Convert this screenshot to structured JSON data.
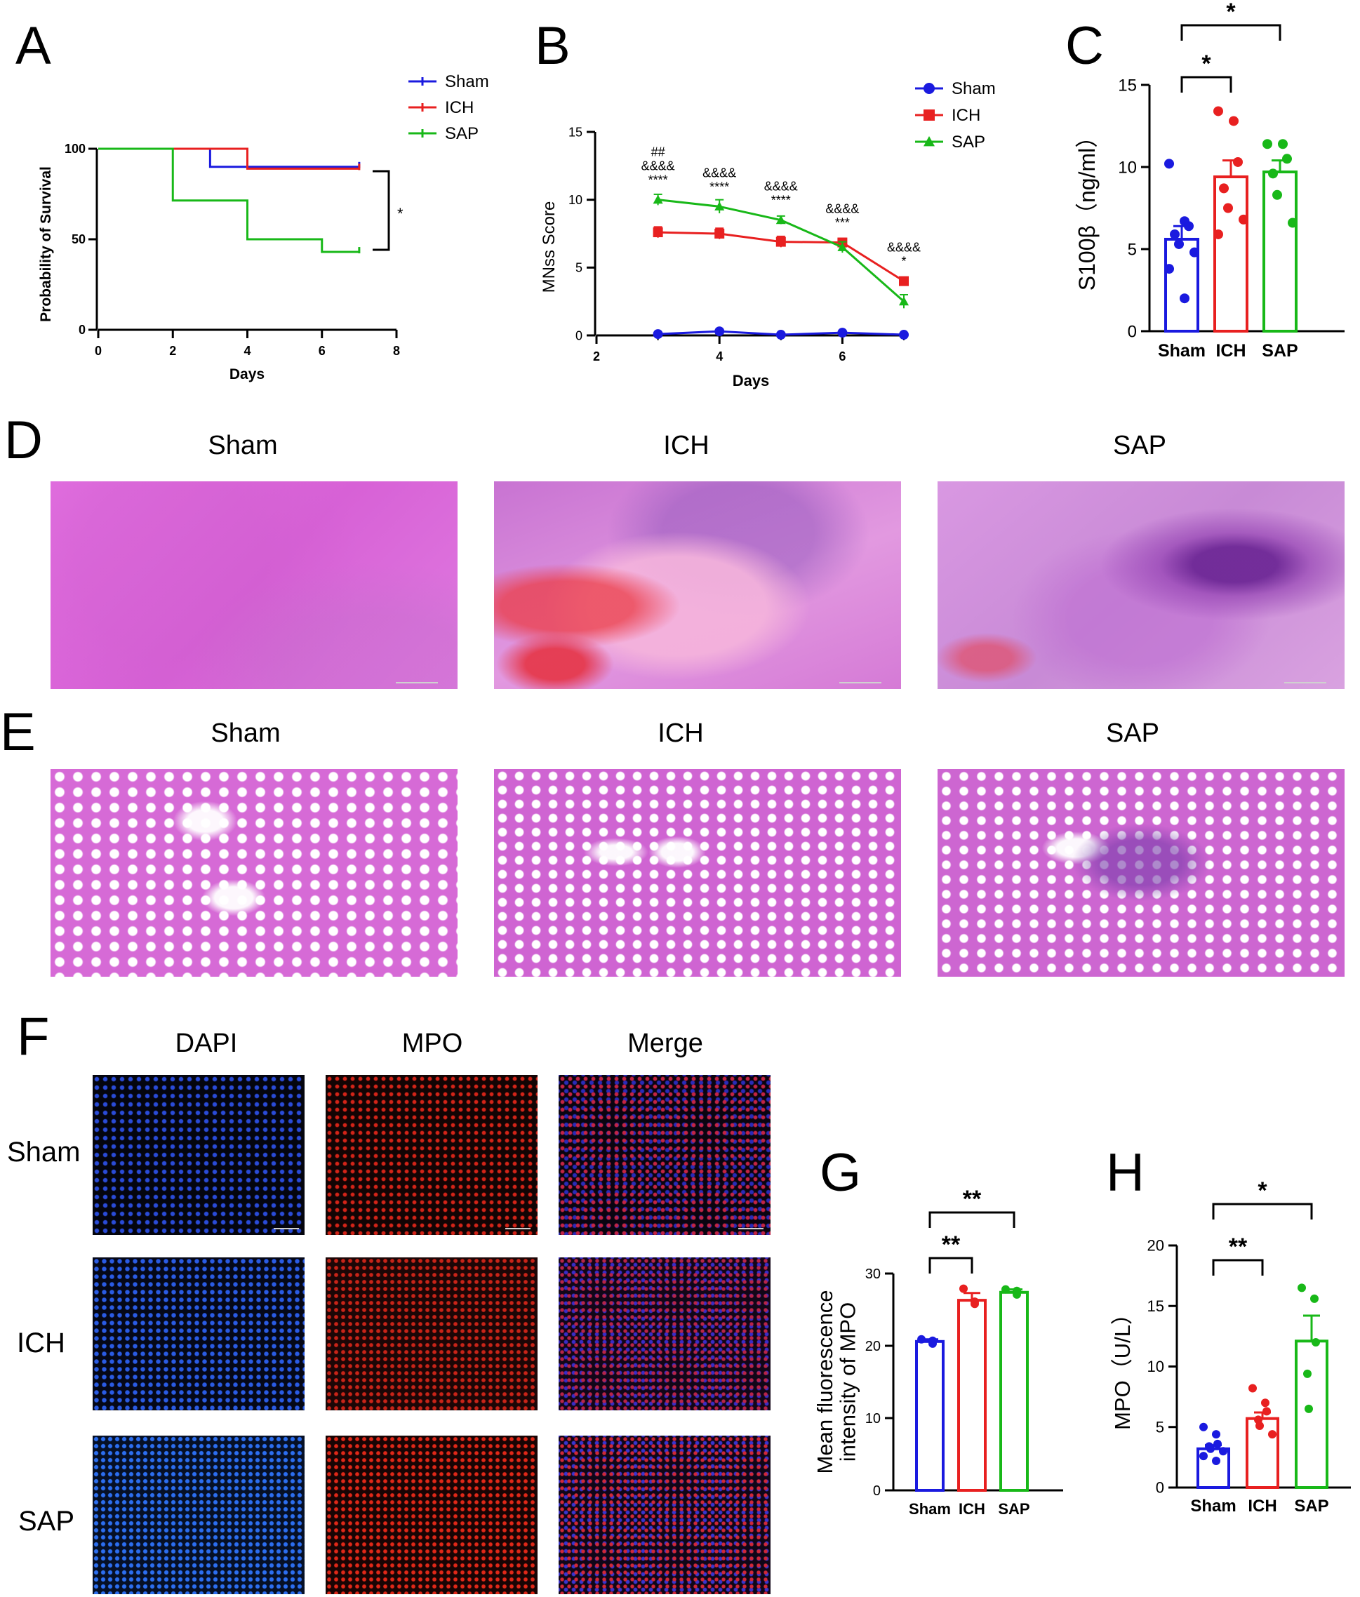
{
  "panels": {
    "A": {
      "letter": "A",
      "chart_data": {
        "type": "line",
        "subtype": "kaplan-meier-survival",
        "xlabel": "Days",
        "ylabel": "Probability of Survival",
        "xlim": [
          0,
          8
        ],
        "ylim": [
          0,
          100
        ],
        "xticks": [
          "0",
          "2",
          "4",
          "6",
          "8"
        ],
        "yticks": [
          "0",
          "50",
          "100"
        ],
        "legend_position": "top-right",
        "series": [
          {
            "name": "Sham",
            "color": "#1a1adf",
            "steps": [
              [
                0,
                100
              ],
              [
                3,
                100
              ],
              [
                3,
                90
              ],
              [
                7,
                90
              ]
            ]
          },
          {
            "name": "ICH",
            "color": "#e82020",
            "steps": [
              [
                0,
                100
              ],
              [
                4,
                100
              ],
              [
                4,
                89
              ],
              [
                7,
                89
              ]
            ]
          },
          {
            "name": "SAP",
            "color": "#18b818",
            "steps": [
              [
                0,
                100
              ],
              [
                2,
                100
              ],
              [
                2,
                71.4
              ],
              [
                4,
                71.4
              ],
              [
                4,
                50
              ],
              [
                6,
                50
              ],
              [
                6,
                43
              ],
              [
                7,
                43
              ]
            ]
          }
        ],
        "annotations": [
          {
            "text": "*",
            "between": [
              "ICH",
              "SAP"
            ]
          }
        ]
      }
    },
    "B": {
      "letter": "B",
      "chart_data": {
        "type": "line",
        "xlabel": "Days",
        "ylabel": "MNss Score",
        "xlim": [
          2,
          7
        ],
        "ylim": [
          0,
          15
        ],
        "xticks": [
          "2",
          "4",
          "6"
        ],
        "yticks": [
          "0",
          "5",
          "10",
          "15"
        ],
        "legend_position": "top-right",
        "x": [
          3,
          4,
          5,
          6,
          7
        ],
        "series": [
          {
            "name": "Sham",
            "color": "#1a1adf",
            "marker": "circle",
            "values": [
              0.1,
              0.3,
              0.05,
              0.2,
              0.05
            ],
            "err": [
              0.05,
              0.1,
              0.05,
              0.1,
              0.05
            ]
          },
          {
            "name": "ICH",
            "color": "#e82020",
            "marker": "square",
            "values": [
              7.6,
              7.5,
              6.9,
              6.85,
              4.0
            ],
            "err": [
              0.4,
              0.4,
              0.4,
              0.3,
              0.2
            ]
          },
          {
            "name": "SAP",
            "color": "#18b818",
            "marker": "triangle",
            "values": [
              10.0,
              9.5,
              8.5,
              6.5,
              2.5
            ],
            "err": [
              0.4,
              0.5,
              0.3,
              0.4,
              0.5
            ]
          }
        ],
        "annotations": [
          {
            "x": 3,
            "lines": [
              "##",
              "&&&&",
              "****"
            ]
          },
          {
            "x": 4,
            "lines": [
              "&&&&",
              "****"
            ]
          },
          {
            "x": 5,
            "lines": [
              "&&&&",
              "****"
            ]
          },
          {
            "x": 6,
            "lines": [
              "&&&&",
              "***"
            ]
          },
          {
            "x": 7,
            "lines": [
              "&&&&",
              "*"
            ]
          }
        ]
      }
    },
    "C": {
      "letter": "C",
      "chart_data": {
        "type": "bar",
        "ylabel": "S100β（ng/ml）",
        "ylim": [
          0,
          15
        ],
        "yticks": [
          "0",
          "5",
          "10",
          "15"
        ],
        "categories": [
          "Sham",
          "ICH",
          "SAP"
        ],
        "colors": [
          "#1a1adf",
          "#e82020",
          "#18b818"
        ],
        "values": [
          5.6,
          9.4,
          9.7
        ],
        "sem": [
          0.8,
          1.0,
          0.7
        ],
        "points": [
          [
            10.2,
            6.7,
            6.4,
            5.9,
            5.3,
            4.8,
            3.8,
            2.0
          ],
          [
            13.4,
            12.8,
            10.3,
            8.7,
            7.5,
            6.8,
            5.9
          ],
          [
            11.4,
            11.4,
            10.5,
            9.6,
            8.3,
            6.6
          ]
        ],
        "significance": [
          {
            "pair": [
              "Sham",
              "ICH"
            ],
            "label": "*"
          },
          {
            "pair": [
              "Sham",
              "SAP"
            ],
            "label": "*"
          }
        ]
      }
    },
    "D": {
      "letter": "D",
      "titles": [
        "Sham",
        "ICH",
        "SAP"
      ]
    },
    "E": {
      "letter": "E",
      "titles": [
        "Sham",
        "ICH",
        "SAP"
      ]
    },
    "F": {
      "letter": "F",
      "columns": [
        "DAPI",
        "MPO",
        "Merge"
      ],
      "rows": [
        "Sham",
        "ICH",
        "SAP"
      ]
    },
    "G": {
      "letter": "G",
      "chart_data": {
        "type": "bar",
        "ylabel": "Mean fluorescence intensity of MPO",
        "ylim": [
          0,
          30
        ],
        "yticks": [
          "0",
          "10",
          "20",
          "30"
        ],
        "categories": [
          "Sham",
          "ICH",
          "SAP"
        ],
        "colors": [
          "#1a1adf",
          "#e82020",
          "#18b818"
        ],
        "values": [
          20.6,
          26.3,
          27.4
        ],
        "sem": [
          0.3,
          1.0,
          0.4
        ],
        "points": [
          [
            20.9,
            20.7,
            20.3
          ],
          [
            27.9,
            26.1,
            25.8
          ],
          [
            27.8,
            27.6,
            27.1
          ]
        ],
        "significance": [
          {
            "pair": [
              "Sham",
              "ICH"
            ],
            "label": "**"
          },
          {
            "pair": [
              "Sham",
              "SAP"
            ],
            "label": "**"
          }
        ]
      }
    },
    "H": {
      "letter": "H",
      "chart_data": {
        "type": "bar",
        "ylabel": "MPO（U/L）",
        "ylim": [
          0,
          20
        ],
        "yticks": [
          "0",
          "5",
          "10",
          "15",
          "20"
        ],
        "categories": [
          "Sham",
          "ICH",
          "SAP"
        ],
        "colors": [
          "#1a1adf",
          "#e82020",
          "#18b818"
        ],
        "values": [
          3.2,
          5.7,
          12.1
        ],
        "sem": [
          0.3,
          0.5,
          2.1
        ],
        "points": [
          [
            5.0,
            4.4,
            3.6,
            3.4,
            3.2,
            3.0,
            2.6,
            2.2
          ],
          [
            8.2,
            7.0,
            6.3,
            5.6,
            5.1,
            4.4
          ],
          [
            16.5,
            15.6,
            12.0,
            9.4,
            6.5
          ]
        ],
        "significance": [
          {
            "pair": [
              "Sham",
              "ICH"
            ],
            "label": "**"
          },
          {
            "pair": [
              "Sham",
              "SAP"
            ],
            "label": "*"
          }
        ]
      }
    }
  }
}
